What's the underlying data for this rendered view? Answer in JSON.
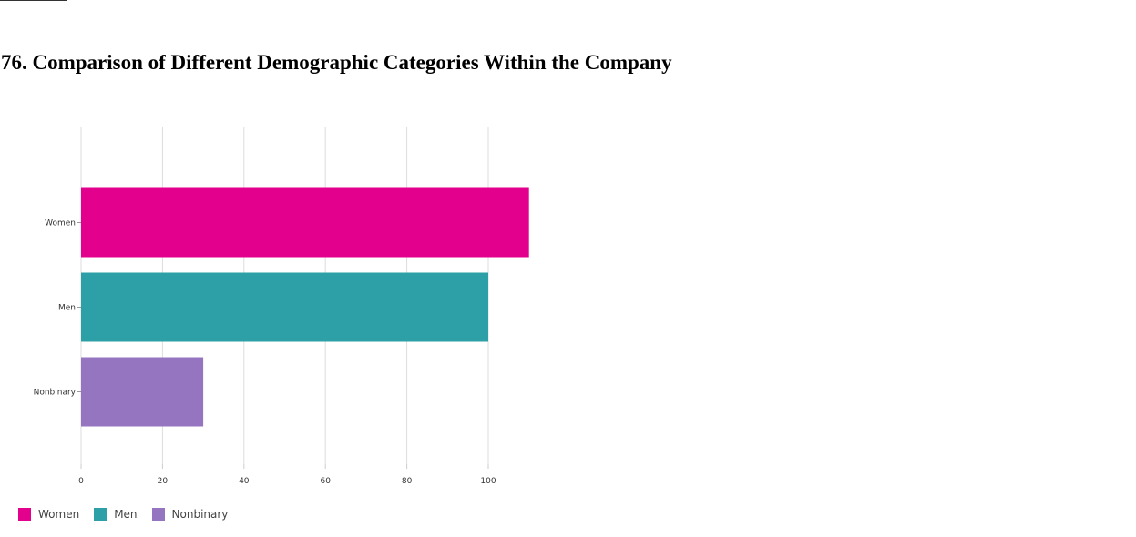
{
  "title": "76. Comparison of Different Demographic Categories Within the Company",
  "chart_data": {
    "type": "bar",
    "orientation": "horizontal",
    "categories": [
      "Women",
      "Men",
      "Nonbinary"
    ],
    "values": [
      110,
      100,
      30
    ],
    "colors": [
      "#e3008c",
      "#2ca0a6",
      "#9575c0"
    ],
    "xlim": [
      0,
      110
    ],
    "xticks": [
      "0",
      "20",
      "40",
      "60",
      "80",
      "100"
    ],
    "grid": true,
    "legend_position": "bottom-left",
    "legend": [
      "Women",
      "Men",
      "Nonbinary"
    ]
  }
}
